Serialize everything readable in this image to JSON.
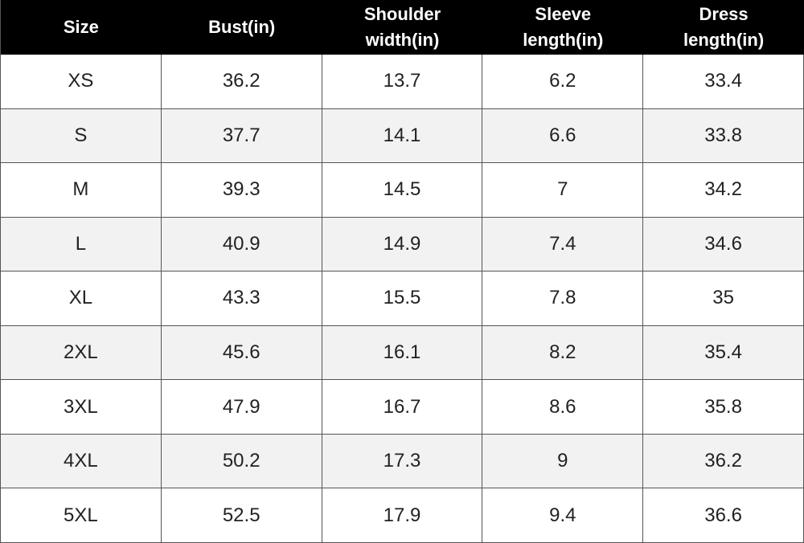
{
  "table": {
    "headers": [
      "Size",
      "Bust(in)",
      "Shoulder\nwidth(in)",
      "Sleeve\nlength(in)",
      "Dress\nlength(in)"
    ],
    "rows": [
      [
        "XS",
        36.2,
        13.7,
        6.2,
        33.4
      ],
      [
        "S",
        37.7,
        14.1,
        6.6,
        33.8
      ],
      [
        "M",
        39.3,
        14.5,
        7,
        34.2
      ],
      [
        "L",
        40.9,
        14.9,
        7.4,
        34.6
      ],
      [
        "XL",
        43.3,
        15.5,
        7.8,
        35
      ],
      [
        "2XL",
        45.6,
        16.1,
        8.2,
        35.4
      ],
      [
        "3XL",
        47.9,
        16.7,
        8.6,
        35.8
      ],
      [
        "4XL",
        50.2,
        17.3,
        9,
        36.2
      ],
      [
        "5XL",
        52.5,
        17.9,
        9.4,
        36.6
      ]
    ]
  }
}
